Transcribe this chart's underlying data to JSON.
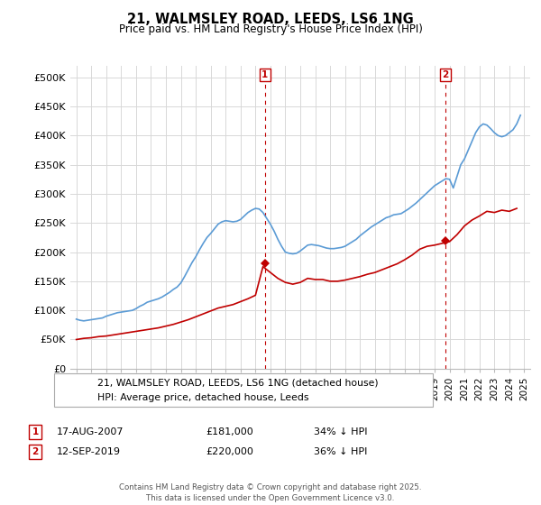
{
  "title": "21, WALMSLEY ROAD, LEEDS, LS6 1NG",
  "subtitle": "Price paid vs. HM Land Registry's House Price Index (HPI)",
  "ylim": [
    0,
    520000
  ],
  "yticks": [
    0,
    50000,
    100000,
    150000,
    200000,
    250000,
    300000,
    350000,
    400000,
    450000,
    500000
  ],
  "ytick_labels": [
    "£0",
    "£50K",
    "£100K",
    "£150K",
    "£200K",
    "£250K",
    "£300K",
    "£350K",
    "£400K",
    "£450K",
    "£500K"
  ],
  "hpi_color": "#5b9bd5",
  "price_color": "#c00000",
  "dashed_line_color": "#c00000",
  "annotation_box_color": "#c00000",
  "background_color": "#ffffff",
  "grid_color": "#d8d8d8",
  "legend_label_price": "21, WALMSLEY ROAD, LEEDS, LS6 1NG (detached house)",
  "legend_label_hpi": "HPI: Average price, detached house, Leeds",
  "sale1_date": "17-AUG-2007",
  "sale1_price": "£181,000",
  "sale1_hpi": "34% ↓ HPI",
  "sale1_year": 2007.62,
  "sale1_value": 181000,
  "sale2_date": "12-SEP-2019",
  "sale2_price": "£220,000",
  "sale2_hpi": "36% ↓ HPI",
  "sale2_year": 2019.7,
  "sale2_value": 220000,
  "footnote": "Contains HM Land Registry data © Crown copyright and database right 2025.\nThis data is licensed under the Open Government Licence v3.0.",
  "hpi_years": [
    1995.0,
    1995.25,
    1995.5,
    1995.75,
    1996.0,
    1996.25,
    1996.5,
    1996.75,
    1997.0,
    1997.25,
    1997.5,
    1997.75,
    1998.0,
    1998.25,
    1998.5,
    1998.75,
    1999.0,
    1999.25,
    1999.5,
    1999.75,
    2000.0,
    2000.25,
    2000.5,
    2000.75,
    2001.0,
    2001.25,
    2001.5,
    2001.75,
    2002.0,
    2002.25,
    2002.5,
    2002.75,
    2003.0,
    2003.25,
    2003.5,
    2003.75,
    2004.0,
    2004.25,
    2004.5,
    2004.75,
    2005.0,
    2005.25,
    2005.5,
    2005.75,
    2006.0,
    2006.25,
    2006.5,
    2006.75,
    2007.0,
    2007.25,
    2007.5,
    2007.75,
    2008.0,
    2008.25,
    2008.5,
    2008.75,
    2009.0,
    2009.25,
    2009.5,
    2009.75,
    2010.0,
    2010.25,
    2010.5,
    2010.75,
    2011.0,
    2011.25,
    2011.5,
    2011.75,
    2012.0,
    2012.25,
    2012.5,
    2012.75,
    2013.0,
    2013.25,
    2013.5,
    2013.75,
    2014.0,
    2014.25,
    2014.5,
    2014.75,
    2015.0,
    2015.25,
    2015.5,
    2015.75,
    2016.0,
    2016.25,
    2016.5,
    2016.75,
    2017.0,
    2017.25,
    2017.5,
    2017.75,
    2018.0,
    2018.25,
    2018.5,
    2018.75,
    2019.0,
    2019.25,
    2019.5,
    2019.75,
    2020.0,
    2020.25,
    2020.5,
    2020.75,
    2021.0,
    2021.25,
    2021.5,
    2021.75,
    2022.0,
    2022.25,
    2022.5,
    2022.75,
    2023.0,
    2023.25,
    2023.5,
    2023.75,
    2024.0,
    2024.25,
    2024.5,
    2024.75
  ],
  "hpi_values": [
    85000,
    83000,
    82000,
    83000,
    84000,
    85000,
    86000,
    87000,
    90000,
    92000,
    94000,
    96000,
    97000,
    98000,
    99000,
    100000,
    103000,
    107000,
    110000,
    114000,
    116000,
    118000,
    120000,
    123000,
    127000,
    131000,
    136000,
    140000,
    147000,
    158000,
    170000,
    182000,
    192000,
    204000,
    215000,
    225000,
    232000,
    240000,
    248000,
    252000,
    254000,
    253000,
    252000,
    253000,
    256000,
    262000,
    268000,
    272000,
    275000,
    274000,
    268000,
    258000,
    248000,
    236000,
    222000,
    210000,
    200000,
    198000,
    197000,
    198000,
    202000,
    207000,
    212000,
    213000,
    212000,
    211000,
    209000,
    207000,
    206000,
    206000,
    207000,
    208000,
    210000,
    214000,
    218000,
    222000,
    228000,
    233000,
    238000,
    243000,
    247000,
    251000,
    255000,
    259000,
    261000,
    264000,
    265000,
    266000,
    270000,
    274000,
    279000,
    284000,
    290000,
    296000,
    302000,
    308000,
    314000,
    318000,
    322000,
    326000,
    325000,
    310000,
    330000,
    350000,
    360000,
    375000,
    390000,
    405000,
    415000,
    420000,
    418000,
    412000,
    405000,
    400000,
    398000,
    400000,
    405000,
    410000,
    420000,
    435000
  ],
  "price_years": [
    1995.0,
    1995.5,
    1996.0,
    1996.5,
    1997.0,
    1997.5,
    1998.0,
    1998.5,
    1999.0,
    1999.5,
    2000.0,
    2000.5,
    2001.0,
    2001.5,
    2002.0,
    2002.5,
    2003.0,
    2003.5,
    2004.0,
    2004.5,
    2005.0,
    2005.5,
    2006.0,
    2006.5,
    2007.0,
    2007.5,
    2008.0,
    2008.5,
    2009.0,
    2009.5,
    2010.0,
    2010.5,
    2011.0,
    2011.5,
    2012.0,
    2012.5,
    2013.0,
    2013.5,
    2014.0,
    2014.5,
    2015.0,
    2015.5,
    2016.0,
    2016.5,
    2017.0,
    2017.5,
    2018.0,
    2018.5,
    2019.0,
    2019.5,
    2020.0,
    2020.5,
    2021.0,
    2021.5,
    2022.0,
    2022.5,
    2023.0,
    2023.5,
    2024.0,
    2024.5
  ],
  "price_values": [
    50000,
    52000,
    53000,
    55000,
    56000,
    58000,
    60000,
    62000,
    64000,
    66000,
    68000,
    70000,
    73000,
    76000,
    80000,
    84000,
    89000,
    94000,
    99000,
    104000,
    107000,
    110000,
    115000,
    120000,
    126000,
    175000,
    165000,
    155000,
    148000,
    145000,
    148000,
    155000,
    153000,
    153000,
    150000,
    150000,
    152000,
    155000,
    158000,
    162000,
    165000,
    170000,
    175000,
    180000,
    187000,
    195000,
    205000,
    210000,
    212000,
    215000,
    218000,
    230000,
    245000,
    255000,
    262000,
    270000,
    268000,
    272000,
    270000,
    275000
  ]
}
